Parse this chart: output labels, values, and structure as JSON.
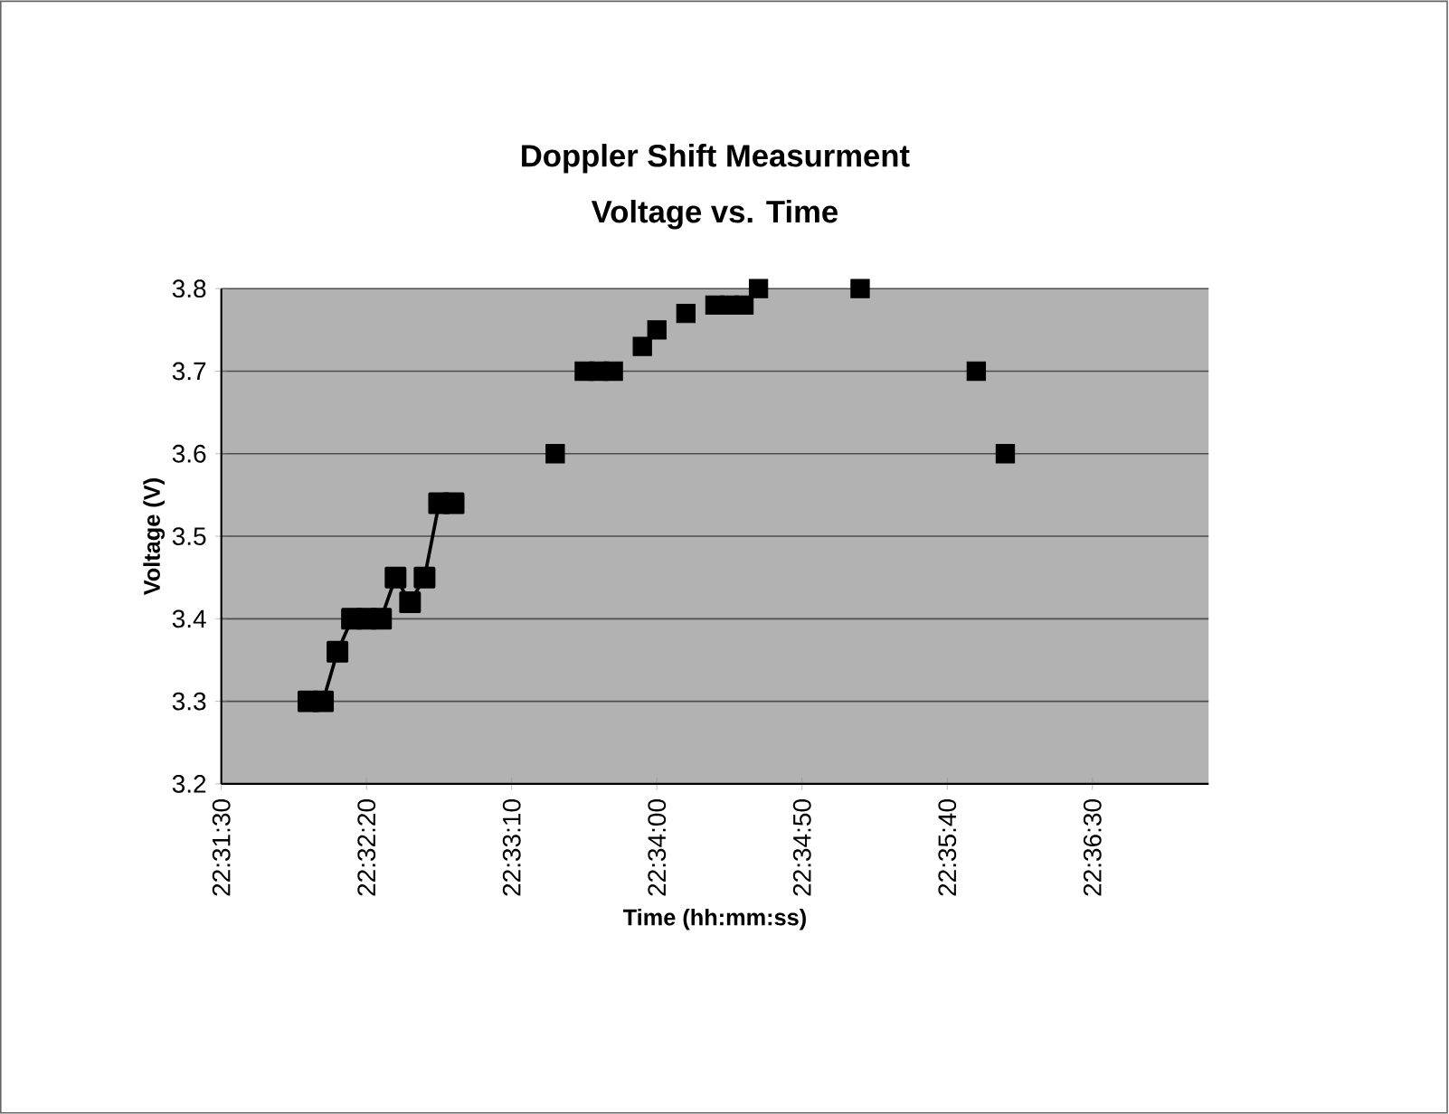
{
  "chart_data": {
    "type": "line",
    "title": "Doppler Shift Measurment",
    "subtitle": "Voltage vs. Time",
    "xlabel": "Time (hh:mm:ss)",
    "ylabel": "Voltage (V)",
    "series": [
      {
        "color": "#000000",
        "x": [
          22.533333,
          22.534722,
          22.536111,
          22.5375,
          22.538889,
          22.540278,
          22.541667,
          22.543056,
          22.544444,
          22.545833,
          22.547222
        ],
        "values": [
          3.3,
          3.3,
          3.36,
          3.4,
          3.4,
          3.4,
          3.45,
          3.42,
          3.45,
          3.54,
          3.54
        ]
      },
      {
        "type": "scatter",
        "color": "#000000",
        "x": [
          22.556944,
          22.559722,
          22.561111,
          22.5625,
          22.565278,
          22.566667,
          22.569444,
          22.572222,
          22.573611,
          22.575,
          22.576389,
          22.586111,
          22.597222,
          22.6
        ],
        "values": [
          3.6,
          3.7,
          3.7,
          3.7,
          3.73,
          3.75,
          3.77,
          3.78,
          3.78,
          3.78,
          3.8,
          3.8,
          3.7,
          3.6
        ]
      }
    ],
    "xlim": [
      22.525,
      22.619444
    ],
    "xticks": [
      {
        "value": 22.525,
        "label": "22:31:30"
      },
      {
        "value": 22.538889,
        "label": "22:32:20"
      },
      {
        "value": 22.552778,
        "label": "22:33:10"
      },
      {
        "value": 22.566667,
        "label": "22:34:00"
      },
      {
        "value": 22.580556,
        "label": "22:34:50"
      },
      {
        "value": 22.594444,
        "label": "22:35:40"
      },
      {
        "value": 22.608333,
        "label": "22:36:30"
      }
    ],
    "ylim": [
      3.2,
      3.8
    ],
    "yticks": [
      3.2,
      3.3,
      3.4,
      3.5,
      3.6,
      3.7,
      3.8
    ],
    "grid": "y",
    "marker": "square"
  }
}
